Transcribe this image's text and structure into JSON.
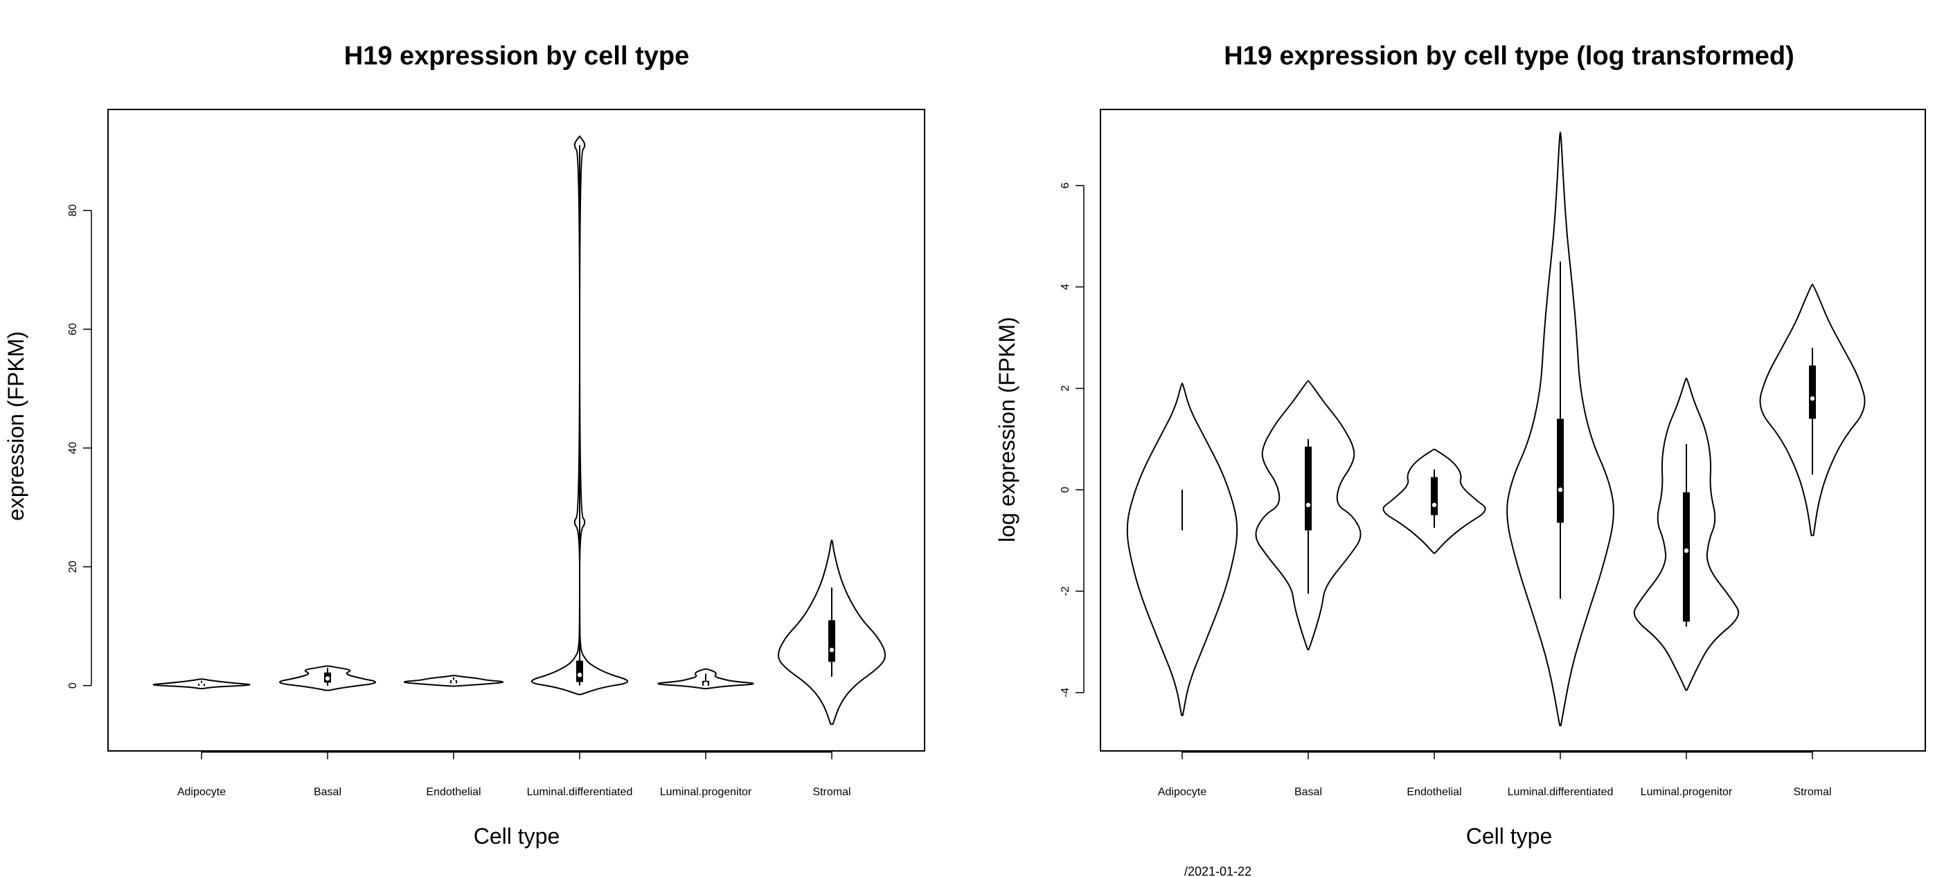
{
  "footer": "/2021-01-22",
  "chart_data": [
    {
      "type": "violin",
      "title": "H19 expression by cell type",
      "xlabel": "Cell type",
      "ylabel": "expression (FPKM)",
      "ylim": [
        -11,
        97
      ],
      "yticks": [
        "0",
        "20",
        "40",
        "60",
        "80"
      ],
      "categories": [
        "Adipocyte",
        "Basal",
        "Endothelial",
        "Luminal.differentiated",
        "Luminal.progenitor",
        "Stromal"
      ],
      "violins": [
        {
          "median": 0.1,
          "q1": 0.0,
          "q3": 0.3,
          "whisker": [
            0.0,
            0.8
          ],
          "density": [
            [
              -0.5,
              0.02
            ],
            [
              -0.2,
              0.25
            ],
            [
              0.1,
              1.0
            ],
            [
              0.4,
              0.6
            ],
            [
              0.8,
              0.2
            ],
            [
              1.1,
              0.02
            ]
          ]
        },
        {
          "median": 1.2,
          "q1": 0.5,
          "q3": 2.2,
          "whisker": [
            0.0,
            3.0
          ],
          "density": [
            [
              -0.8,
              0.03
            ],
            [
              -0.3,
              0.3
            ],
            [
              0.5,
              1.0
            ],
            [
              1.3,
              0.55
            ],
            [
              2.0,
              0.3
            ],
            [
              2.6,
              0.45
            ],
            [
              3.0,
              0.2
            ],
            [
              3.3,
              0.02
            ]
          ]
        },
        {
          "median": 0.6,
          "q1": 0.4,
          "q3": 0.9,
          "whisker": [
            0.2,
            1.4
          ],
          "density": [
            [
              -0.1,
              0.02
            ],
            [
              0.2,
              0.5
            ],
            [
              0.6,
              1.0
            ],
            [
              0.9,
              0.6
            ],
            [
              1.2,
              0.45
            ],
            [
              1.5,
              0.15
            ],
            [
              1.7,
              0.02
            ]
          ]
        },
        {
          "median": 1.8,
          "q1": 0.6,
          "q3": 4.2,
          "whisker": [
            0.0,
            91.0
          ],
          "density": [
            [
              -1.5,
              0.02
            ],
            [
              -0.3,
              0.4
            ],
            [
              0.6,
              1.0
            ],
            [
              2.0,
              0.5
            ],
            [
              3.5,
              0.2
            ],
            [
              4.5,
              0.1
            ],
            [
              6.0,
              0.01
            ],
            [
              12.0,
              0.0
            ],
            [
              26.0,
              0.0
            ],
            [
              27.5,
              0.12
            ],
            [
              29.0,
              0.0
            ],
            [
              89.5,
              0.0
            ],
            [
              91.0,
              0.12
            ],
            [
              92.5,
              0.0
            ]
          ]
        },
        {
          "median": 0.3,
          "q1": 0.0,
          "q3": 0.8,
          "whisker": [
            0.0,
            2.0
          ],
          "density": [
            [
              -0.5,
              0.02
            ],
            [
              -0.1,
              0.35
            ],
            [
              0.3,
              1.0
            ],
            [
              0.7,
              0.5
            ],
            [
              1.0,
              0.35
            ],
            [
              1.5,
              0.15
            ],
            [
              2.0,
              0.2
            ],
            [
              2.4,
              0.15
            ],
            [
              2.8,
              0.02
            ]
          ]
        },
        {
          "median": 6.0,
          "q1": 4.0,
          "q3": 11.0,
          "whisker": [
            1.5,
            16.5
          ],
          "density": [
            [
              -6.5,
              0.02
            ],
            [
              -3.0,
              0.15
            ],
            [
              0.0,
              0.4
            ],
            [
              3.0,
              0.85
            ],
            [
              5.0,
              1.0
            ],
            [
              8.0,
              0.85
            ],
            [
              11.0,
              0.55
            ],
            [
              14.0,
              0.35
            ],
            [
              17.0,
              0.2
            ],
            [
              20.0,
              0.1
            ],
            [
              23.0,
              0.03
            ],
            [
              24.5,
              0.01
            ]
          ]
        }
      ]
    },
    {
      "type": "violin",
      "title": "H19 expression by cell type (log transformed)",
      "xlabel": "Cell type",
      "ylabel": "log expression (FPKM)",
      "ylim": [
        -5.15,
        7.5
      ],
      "yticks": [
        "-4",
        "-2",
        "0",
        "2",
        "4",
        "6"
      ],
      "categories": [
        "Adipocyte",
        "Basal",
        "Endothelial",
        "Luminal.differentiated",
        "Luminal.progenitor",
        "Stromal"
      ],
      "violins": [
        {
          "median": null,
          "q1": null,
          "q3": null,
          "whisker": [
            -0.8,
            0.0
          ],
          "density": [
            [
              -4.45,
              0.01
            ],
            [
              -3.8,
              0.12
            ],
            [
              -3.0,
              0.42
            ],
            [
              -2.0,
              0.78
            ],
            [
              -1.2,
              0.96
            ],
            [
              -0.8,
              1.0
            ],
            [
              -0.4,
              0.96
            ],
            [
              0.3,
              0.75
            ],
            [
              1.0,
              0.42
            ],
            [
              1.6,
              0.13
            ],
            [
              2.1,
              0.01
            ]
          ]
        },
        {
          "median": -0.3,
          "q1": -0.8,
          "q3": 0.85,
          "whisker": [
            -2.05,
            1.0
          ],
          "density": [
            [
              -3.15,
              0.01
            ],
            [
              -2.8,
              0.12
            ],
            [
              -2.3,
              0.25
            ],
            [
              -1.9,
              0.3
            ],
            [
              -1.3,
              0.75
            ],
            [
              -0.9,
              1.0
            ],
            [
              -0.5,
              0.8
            ],
            [
              -0.3,
              0.5
            ],
            [
              0.1,
              0.55
            ],
            [
              0.5,
              0.8
            ],
            [
              0.8,
              0.85
            ],
            [
              1.3,
              0.6
            ],
            [
              1.7,
              0.3
            ],
            [
              2.15,
              0.01
            ]
          ]
        },
        {
          "median": -0.3,
          "q1": -0.5,
          "q3": 0.25,
          "whisker": [
            -0.75,
            0.4
          ],
          "density": [
            [
              -1.25,
              0.01
            ],
            [
              -1.0,
              0.22
            ],
            [
              -0.7,
              0.55
            ],
            [
              -0.4,
              1.0
            ],
            [
              -0.2,
              0.75
            ],
            [
              0.1,
              0.45
            ],
            [
              0.3,
              0.5
            ],
            [
              0.55,
              0.35
            ],
            [
              0.8,
              0.01
            ]
          ]
        },
        {
          "median": 0.0,
          "q1": -0.65,
          "q3": 1.4,
          "whisker": [
            -2.15,
            4.5
          ],
          "density": [
            [
              -4.65,
              0.01
            ],
            [
              -3.5,
              0.2
            ],
            [
              -2.5,
              0.48
            ],
            [
              -1.5,
              0.78
            ],
            [
              -0.5,
              1.0
            ],
            [
              0.2,
              0.88
            ],
            [
              1.0,
              0.55
            ],
            [
              2.0,
              0.35
            ],
            [
              3.0,
              0.3
            ],
            [
              4.0,
              0.22
            ],
            [
              5.0,
              0.12
            ],
            [
              6.0,
              0.06
            ],
            [
              7.05,
              0.01
            ]
          ]
        },
        {
          "median": -1.2,
          "q1": -2.6,
          "q3": -0.05,
          "whisker": [
            -2.7,
            0.9
          ],
          "density": [
            [
              -3.95,
              0.01
            ],
            [
              -3.5,
              0.2
            ],
            [
              -3.0,
              0.45
            ],
            [
              -2.5,
              1.0
            ],
            [
              -2.2,
              0.85
            ],
            [
              -1.5,
              0.35
            ],
            [
              -1.0,
              0.4
            ],
            [
              -0.6,
              0.55
            ],
            [
              0.0,
              0.42
            ],
            [
              0.6,
              0.45
            ],
            [
              1.2,
              0.35
            ],
            [
              1.7,
              0.15
            ],
            [
              2.2,
              0.01
            ]
          ]
        },
        {
          "median": 1.8,
          "q1": 1.4,
          "q3": 2.45,
          "whisker": [
            0.3,
            2.8
          ],
          "density": [
            [
              -0.9,
              0.02
            ],
            [
              -0.3,
              0.1
            ],
            [
              0.3,
              0.25
            ],
            [
              1.0,
              0.55
            ],
            [
              1.6,
              1.0
            ],
            [
              2.2,
              0.85
            ],
            [
              2.8,
              0.55
            ],
            [
              3.3,
              0.3
            ],
            [
              3.7,
              0.15
            ],
            [
              4.05,
              0.01
            ]
          ]
        }
      ]
    }
  ]
}
